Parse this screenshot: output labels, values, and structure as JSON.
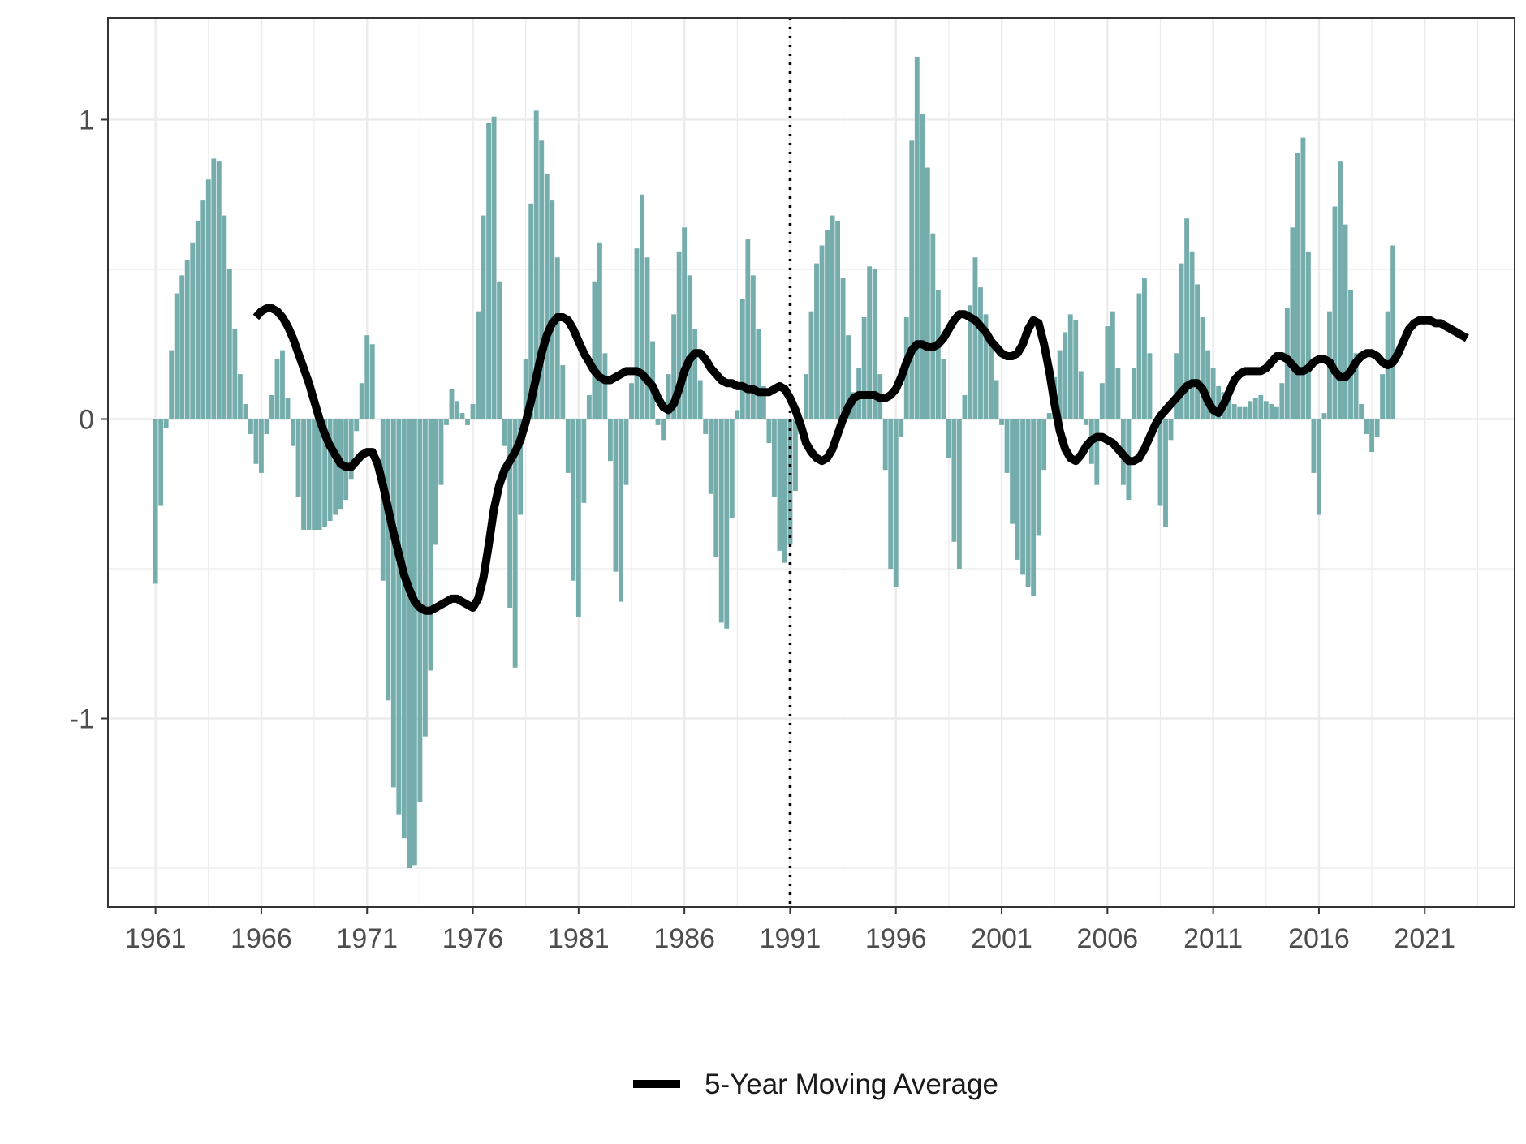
{
  "chart_data": {
    "type": "bar",
    "x_start": 1961.0,
    "x_step": 0.25,
    "values": [
      -0.55,
      -0.29,
      -0.03,
      0.23,
      0.42,
      0.48,
      0.53,
      0.59,
      0.66,
      0.73,
      0.8,
      0.87,
      0.86,
      0.68,
      0.5,
      0.3,
      0.15,
      0.05,
      -0.05,
      -0.15,
      -0.18,
      -0.05,
      0.08,
      0.2,
      0.23,
      0.07,
      -0.09,
      -0.26,
      -0.37,
      -0.37,
      -0.37,
      -0.37,
      -0.36,
      -0.34,
      -0.32,
      -0.3,
      -0.27,
      -0.2,
      -0.04,
      0.12,
      0.28,
      0.25,
      0.0,
      -0.54,
      -0.94,
      -1.23,
      -1.32,
      -1.4,
      -1.5,
      -1.49,
      -1.28,
      -1.06,
      -0.84,
      -0.42,
      -0.22,
      -0.02,
      0.1,
      0.06,
      0.02,
      -0.02,
      0.05,
      0.36,
      0.68,
      0.99,
      1.01,
      0.46,
      -0.09,
      -0.63,
      -0.83,
      -0.32,
      0.2,
      0.72,
      1.03,
      0.93,
      0.82,
      0.73,
      0.54,
      0.18,
      -0.18,
      -0.54,
      -0.66,
      -0.28,
      0.08,
      0.46,
      0.59,
      0.22,
      -0.14,
      -0.51,
      -0.61,
      -0.22,
      0.12,
      0.57,
      0.75,
      0.54,
      0.26,
      -0.02,
      -0.07,
      0.15,
      0.35,
      0.56,
      0.64,
      0.48,
      0.3,
      0.13,
      -0.05,
      -0.25,
      -0.46,
      -0.68,
      -0.7,
      -0.33,
      0.03,
      0.4,
      0.6,
      0.48,
      0.3,
      0.11,
      -0.08,
      -0.26,
      -0.44,
      -0.48,
      -0.42,
      -0.24,
      -0.05,
      0.15,
      0.36,
      0.52,
      0.58,
      0.63,
      0.68,
      0.66,
      0.47,
      0.28,
      0.09,
      0.17,
      0.34,
      0.51,
      0.5,
      0.15,
      -0.17,
      -0.5,
      -0.56,
      -0.06,
      0.34,
      0.93,
      1.21,
      1.02,
      0.84,
      0.62,
      0.43,
      0.2,
      -0.13,
      -0.41,
      -0.5,
      0.08,
      0.38,
      0.54,
      0.44,
      0.35,
      0.26,
      0.13,
      -0.02,
      -0.18,
      -0.35,
      -0.47,
      -0.52,
      -0.56,
      -0.59,
      -0.39,
      -0.17,
      0.02,
      0.14,
      0.23,
      0.29,
      0.35,
      0.33,
      0.16,
      -0.02,
      -0.15,
      -0.22,
      0.12,
      0.31,
      0.36,
      0.17,
      -0.22,
      -0.27,
      0.17,
      0.42,
      0.47,
      0.22,
      -0.03,
      -0.29,
      -0.36,
      -0.07,
      0.22,
      0.52,
      0.67,
      0.56,
      0.45,
      0.34,
      0.23,
      0.17,
      0.11,
      0.09,
      0.07,
      0.05,
      0.04,
      0.04,
      0.06,
      0.07,
      0.08,
      0.06,
      0.05,
      0.04,
      0.12,
      0.37,
      0.64,
      0.89,
      0.94,
      0.56,
      -0.18,
      -0.32,
      0.02,
      0.36,
      0.71,
      0.86,
      0.65,
      0.43,
      0.22,
      0.05,
      -0.05,
      -0.11,
      -0.06,
      0.15,
      0.36,
      0.58
    ],
    "moving_average": [
      [
        1965.75,
        0.34
      ],
      [
        1966.0,
        0.36
      ],
      [
        1966.25,
        0.37
      ],
      [
        1966.5,
        0.37
      ],
      [
        1966.75,
        0.36
      ],
      [
        1967.0,
        0.34
      ],
      [
        1967.25,
        0.31
      ],
      [
        1967.5,
        0.27
      ],
      [
        1967.75,
        0.22
      ],
      [
        1968.0,
        0.17
      ],
      [
        1968.25,
        0.12
      ],
      [
        1968.5,
        0.06
      ],
      [
        1968.75,
        0.0
      ],
      [
        1969.0,
        -0.05
      ],
      [
        1969.25,
        -0.09
      ],
      [
        1969.5,
        -0.12
      ],
      [
        1969.75,
        -0.15
      ],
      [
        1970.0,
        -0.16
      ],
      [
        1970.25,
        -0.16
      ],
      [
        1970.5,
        -0.14
      ],
      [
        1970.75,
        -0.12
      ],
      [
        1971.0,
        -0.11
      ],
      [
        1971.25,
        -0.11
      ],
      [
        1971.5,
        -0.15
      ],
      [
        1971.75,
        -0.22
      ],
      [
        1972.0,
        -0.3
      ],
      [
        1972.25,
        -0.38
      ],
      [
        1972.5,
        -0.45
      ],
      [
        1972.75,
        -0.52
      ],
      [
        1973.0,
        -0.57
      ],
      [
        1973.25,
        -0.61
      ],
      [
        1973.5,
        -0.63
      ],
      [
        1973.75,
        -0.64
      ],
      [
        1974.0,
        -0.64
      ],
      [
        1974.25,
        -0.63
      ],
      [
        1974.5,
        -0.62
      ],
      [
        1974.75,
        -0.61
      ],
      [
        1975.0,
        -0.6
      ],
      [
        1975.25,
        -0.6
      ],
      [
        1975.5,
        -0.61
      ],
      [
        1975.75,
        -0.62
      ],
      [
        1976.0,
        -0.63
      ],
      [
        1976.25,
        -0.6
      ],
      [
        1976.5,
        -0.53
      ],
      [
        1976.75,
        -0.42
      ],
      [
        1977.0,
        -0.3
      ],
      [
        1977.25,
        -0.22
      ],
      [
        1977.5,
        -0.17
      ],
      [
        1977.75,
        -0.14
      ],
      [
        1978.0,
        -0.11
      ],
      [
        1978.25,
        -0.07
      ],
      [
        1978.5,
        -0.01
      ],
      [
        1978.75,
        0.06
      ],
      [
        1979.0,
        0.14
      ],
      [
        1979.25,
        0.22
      ],
      [
        1979.5,
        0.28
      ],
      [
        1979.75,
        0.32
      ],
      [
        1980.0,
        0.34
      ],
      [
        1980.25,
        0.34
      ],
      [
        1980.5,
        0.33
      ],
      [
        1980.75,
        0.3
      ],
      [
        1981.0,
        0.26
      ],
      [
        1981.25,
        0.22
      ],
      [
        1981.5,
        0.19
      ],
      [
        1981.75,
        0.16
      ],
      [
        1982.0,
        0.14
      ],
      [
        1982.25,
        0.13
      ],
      [
        1982.5,
        0.13
      ],
      [
        1982.75,
        0.14
      ],
      [
        1983.0,
        0.15
      ],
      [
        1983.25,
        0.16
      ],
      [
        1983.5,
        0.16
      ],
      [
        1983.75,
        0.16
      ],
      [
        1984.0,
        0.15
      ],
      [
        1984.25,
        0.13
      ],
      [
        1984.5,
        0.11
      ],
      [
        1984.75,
        0.07
      ],
      [
        1985.0,
        0.04
      ],
      [
        1985.25,
        0.03
      ],
      [
        1985.5,
        0.05
      ],
      [
        1985.75,
        0.1
      ],
      [
        1986.0,
        0.16
      ],
      [
        1986.25,
        0.2
      ],
      [
        1986.5,
        0.22
      ],
      [
        1986.75,
        0.22
      ],
      [
        1987.0,
        0.2
      ],
      [
        1987.25,
        0.17
      ],
      [
        1987.5,
        0.15
      ],
      [
        1987.75,
        0.13
      ],
      [
        1988.0,
        0.12
      ],
      [
        1988.25,
        0.12
      ],
      [
        1988.5,
        0.11
      ],
      [
        1988.75,
        0.11
      ],
      [
        1989.0,
        0.1
      ],
      [
        1989.25,
        0.1
      ],
      [
        1989.5,
        0.09
      ],
      [
        1989.75,
        0.09
      ],
      [
        1990.0,
        0.09
      ],
      [
        1990.25,
        0.1
      ],
      [
        1990.5,
        0.11
      ],
      [
        1990.75,
        0.1
      ],
      [
        1991.0,
        0.07
      ],
      [
        1991.25,
        0.03
      ],
      [
        1991.5,
        -0.02
      ],
      [
        1991.75,
        -0.08
      ],
      [
        1992.0,
        -0.11
      ],
      [
        1992.25,
        -0.13
      ],
      [
        1992.5,
        -0.14
      ],
      [
        1992.75,
        -0.13
      ],
      [
        1993.0,
        -0.1
      ],
      [
        1993.25,
        -0.05
      ],
      [
        1993.5,
        0.0
      ],
      [
        1993.75,
        0.04
      ],
      [
        1994.0,
        0.07
      ],
      [
        1994.25,
        0.08
      ],
      [
        1994.5,
        0.08
      ],
      [
        1994.75,
        0.08
      ],
      [
        1995.0,
        0.08
      ],
      [
        1995.25,
        0.07
      ],
      [
        1995.5,
        0.07
      ],
      [
        1995.75,
        0.08
      ],
      [
        1996.0,
        0.1
      ],
      [
        1996.25,
        0.14
      ],
      [
        1996.5,
        0.19
      ],
      [
        1996.75,
        0.23
      ],
      [
        1997.0,
        0.25
      ],
      [
        1997.25,
        0.25
      ],
      [
        1997.5,
        0.24
      ],
      [
        1997.75,
        0.24
      ],
      [
        1998.0,
        0.25
      ],
      [
        1998.25,
        0.27
      ],
      [
        1998.5,
        0.3
      ],
      [
        1998.75,
        0.33
      ],
      [
        1999.0,
        0.35
      ],
      [
        1999.25,
        0.35
      ],
      [
        1999.5,
        0.34
      ],
      [
        1999.75,
        0.33
      ],
      [
        2000.0,
        0.31
      ],
      [
        2000.25,
        0.29
      ],
      [
        2000.5,
        0.26
      ],
      [
        2000.75,
        0.24
      ],
      [
        2001.0,
        0.22
      ],
      [
        2001.25,
        0.21
      ],
      [
        2001.5,
        0.21
      ],
      [
        2001.75,
        0.22
      ],
      [
        2002.0,
        0.25
      ],
      [
        2002.25,
        0.3
      ],
      [
        2002.5,
        0.33
      ],
      [
        2002.75,
        0.32
      ],
      [
        2003.0,
        0.25
      ],
      [
        2003.25,
        0.16
      ],
      [
        2003.5,
        0.05
      ],
      [
        2003.75,
        -0.04
      ],
      [
        2004.0,
        -0.1
      ],
      [
        2004.25,
        -0.13
      ],
      [
        2004.5,
        -0.14
      ],
      [
        2004.75,
        -0.12
      ],
      [
        2005.0,
        -0.09
      ],
      [
        2005.25,
        -0.07
      ],
      [
        2005.5,
        -0.06
      ],
      [
        2005.75,
        -0.06
      ],
      [
        2006.0,
        -0.07
      ],
      [
        2006.25,
        -0.08
      ],
      [
        2006.5,
        -0.1
      ],
      [
        2006.75,
        -0.12
      ],
      [
        2007.0,
        -0.14
      ],
      [
        2007.25,
        -0.14
      ],
      [
        2007.5,
        -0.13
      ],
      [
        2007.75,
        -0.1
      ],
      [
        2008.0,
        -0.06
      ],
      [
        2008.25,
        -0.02
      ],
      [
        2008.5,
        0.01
      ],
      [
        2008.75,
        0.03
      ],
      [
        2009.0,
        0.05
      ],
      [
        2009.25,
        0.07
      ],
      [
        2009.5,
        0.09
      ],
      [
        2009.75,
        0.11
      ],
      [
        2010.0,
        0.12
      ],
      [
        2010.25,
        0.12
      ],
      [
        2010.5,
        0.1
      ],
      [
        2010.75,
        0.06
      ],
      [
        2011.0,
        0.03
      ],
      [
        2011.25,
        0.02
      ],
      [
        2011.5,
        0.05
      ],
      [
        2011.75,
        0.09
      ],
      [
        2012.0,
        0.13
      ],
      [
        2012.25,
        0.15
      ],
      [
        2012.5,
        0.16
      ],
      [
        2012.75,
        0.16
      ],
      [
        2013.0,
        0.16
      ],
      [
        2013.25,
        0.16
      ],
      [
        2013.5,
        0.17
      ],
      [
        2013.75,
        0.19
      ],
      [
        2014.0,
        0.21
      ],
      [
        2014.25,
        0.21
      ],
      [
        2014.5,
        0.2
      ],
      [
        2014.75,
        0.18
      ],
      [
        2015.0,
        0.16
      ],
      [
        2015.25,
        0.16
      ],
      [
        2015.5,
        0.17
      ],
      [
        2015.75,
        0.19
      ],
      [
        2016.0,
        0.2
      ],
      [
        2016.25,
        0.2
      ],
      [
        2016.5,
        0.19
      ],
      [
        2016.75,
        0.16
      ],
      [
        2017.0,
        0.14
      ],
      [
        2017.25,
        0.14
      ],
      [
        2017.5,
        0.16
      ],
      [
        2017.75,
        0.19
      ],
      [
        2018.0,
        0.21
      ],
      [
        2018.25,
        0.22
      ],
      [
        2018.5,
        0.22
      ],
      [
        2018.75,
        0.21
      ],
      [
        2019.0,
        0.19
      ],
      [
        2019.25,
        0.18
      ],
      [
        2019.5,
        0.19
      ],
      [
        2019.75,
        0.22
      ],
      [
        2020.0,
        0.26
      ],
      [
        2020.25,
        0.3
      ],
      [
        2020.5,
        0.32
      ],
      [
        2020.75,
        0.33
      ],
      [
        2021.0,
        0.33
      ],
      [
        2021.25,
        0.33
      ],
      [
        2021.5,
        0.32
      ],
      [
        2021.75,
        0.32
      ],
      [
        2022.0,
        0.31
      ],
      [
        2022.25,
        0.3
      ],
      [
        2022.5,
        0.29
      ],
      [
        2022.75,
        0.28
      ],
      [
        2023.0,
        0.27
      ]
    ],
    "vline_x": 1991,
    "x_ticks": [
      1961,
      1966,
      1971,
      1976,
      1981,
      1986,
      1991,
      1996,
      2001,
      2006,
      2011,
      2016,
      2021
    ],
    "x_tick_labels": [
      "1961",
      "1966",
      "1971",
      "1976",
      "1981",
      "1986",
      "1991",
      "1996",
      "2001",
      "2006",
      "2011",
      "2016",
      "2021"
    ],
    "y_ticks": [
      -1,
      0,
      1
    ],
    "y_tick_labels": [
      "-1",
      "0",
      "1"
    ],
    "xlim": [
      1958.75,
      2025.25
    ],
    "ylim": [
      -1.63,
      1.34
    ],
    "grid": true,
    "legend_position": "bottom",
    "legend": [
      {
        "label": "5-Year Moving Average",
        "type": "line"
      }
    ],
    "colors": {
      "bars": "#75adad",
      "moving_average": "#000000",
      "vline": "#000000",
      "grid": "#ebebeb",
      "panel_border": "#333333",
      "tick_text": "#4d4d4d"
    }
  }
}
